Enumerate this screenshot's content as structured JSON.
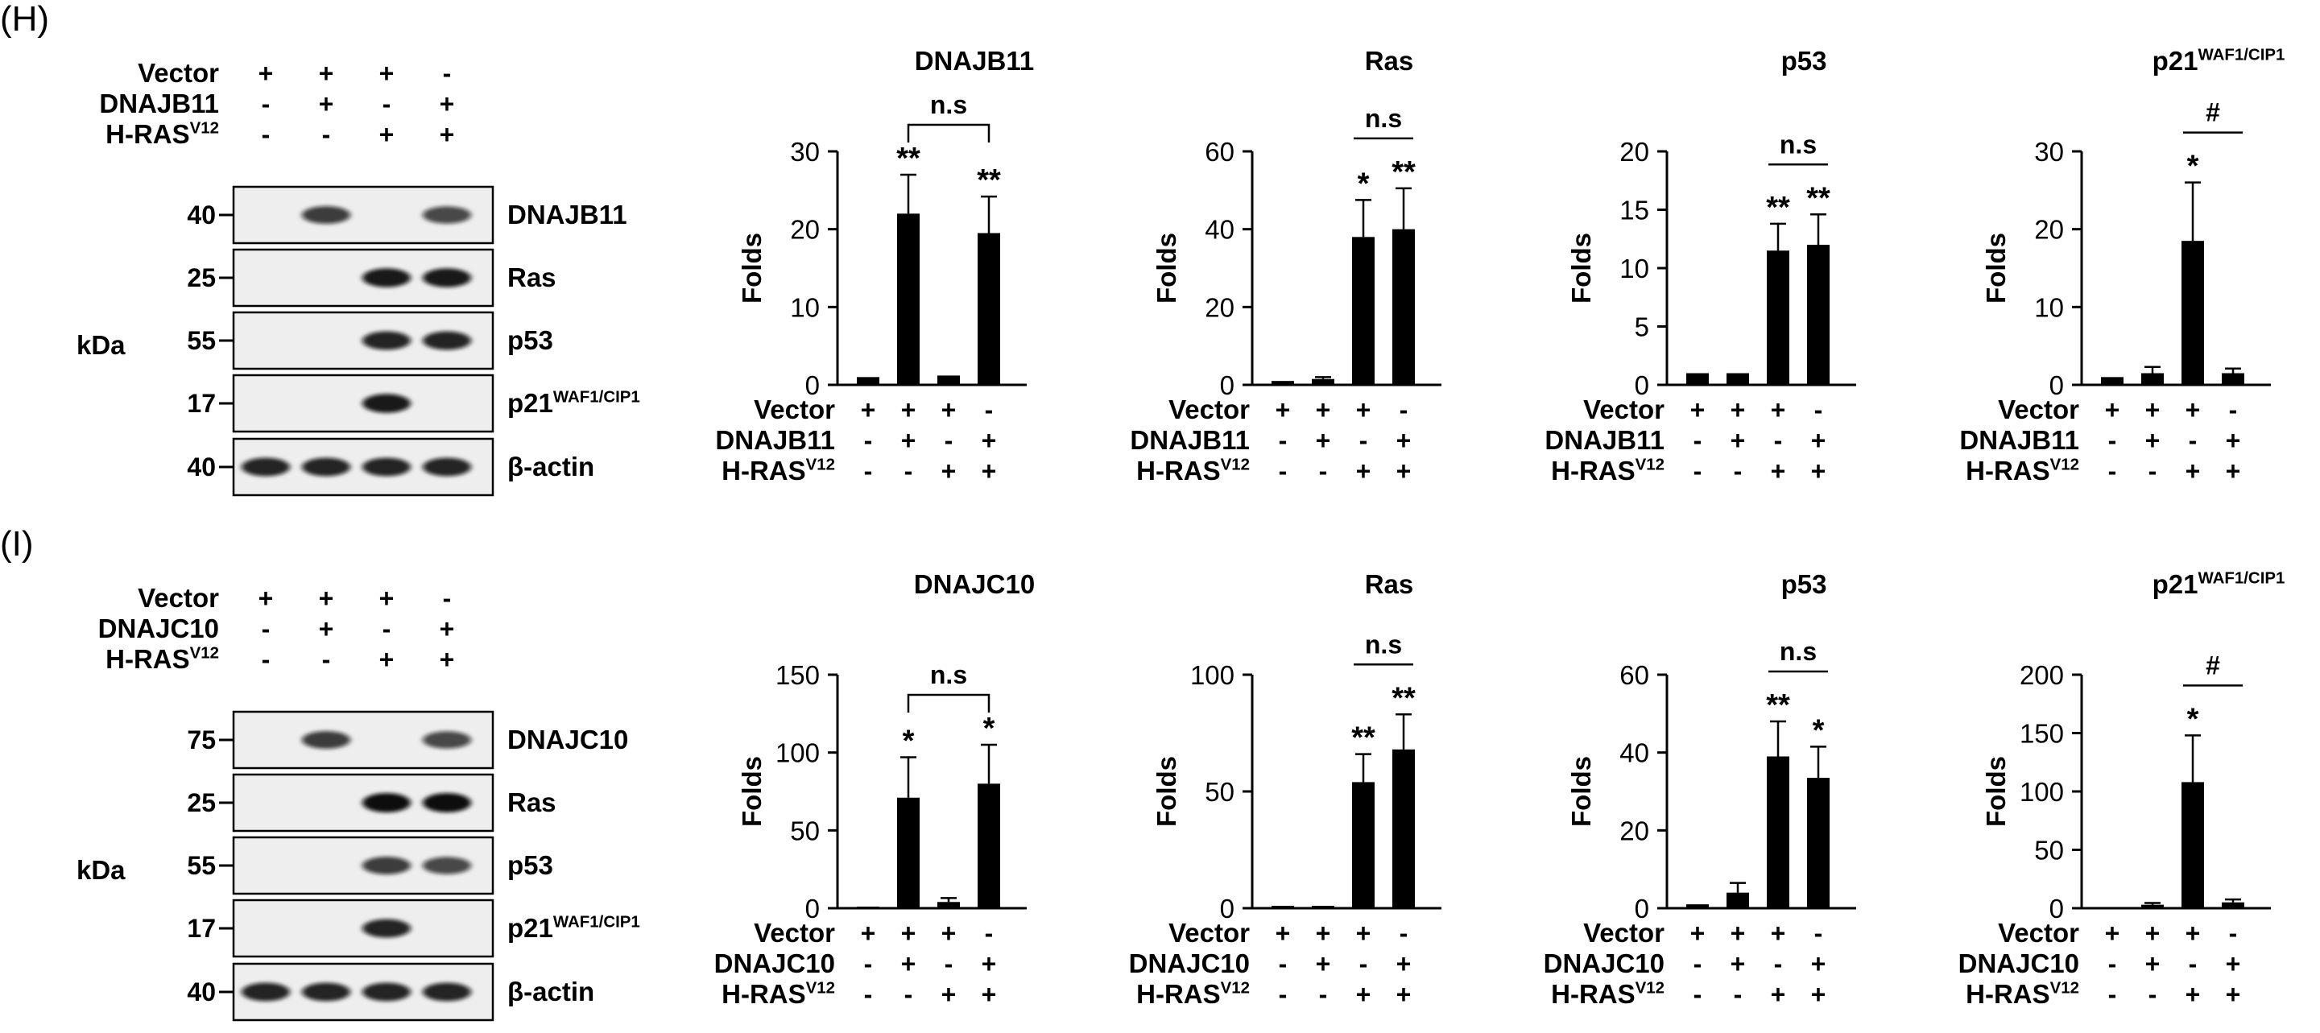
{
  "panels": [
    {
      "letter": "(H)",
      "blot": {
        "conditions": [
          {
            "label": "Vector",
            "signs": [
              "+",
              "+",
              "+",
              "-"
            ]
          },
          {
            "label": "DNAJB11",
            "signs": [
              "-",
              "+",
              "-",
              "+"
            ]
          },
          {
            "label": "H-RAS",
            "sup": "V12",
            "signs": [
              "-",
              "-",
              "+",
              "+"
            ]
          }
        ],
        "unit": "kDa",
        "strips": [
          {
            "name": "DNAJB11",
            "sup": "",
            "marker": "40",
            "bands": [
              0,
              0.8,
              0,
              0.75
            ]
          },
          {
            "name": "Ras",
            "sup": "",
            "marker": "25",
            "bands": [
              0,
              0,
              0.95,
              0.95
            ]
          },
          {
            "name": "p53",
            "sup": "",
            "marker": "55",
            "bands": [
              0,
              0,
              0.9,
              0.9
            ]
          },
          {
            "name": "p21",
            "sup": "WAF1/CIP1",
            "marker": "17",
            "bands": [
              0,
              0,
              0.95,
              0
            ]
          },
          {
            "name": "β-actin",
            "sup": "",
            "marker": "40",
            "bands": [
              0.9,
              0.9,
              0.9,
              0.9
            ]
          }
        ]
      }
    },
    {
      "letter": "(I)",
      "blot": {
        "conditions": [
          {
            "label": "Vector",
            "signs": [
              "+",
              "+",
              "+",
              "-"
            ]
          },
          {
            "label": "DNAJC10",
            "signs": [
              "-",
              "+",
              "-",
              "+"
            ]
          },
          {
            "label": "H-RAS",
            "sup": "V12",
            "signs": [
              "-",
              "-",
              "+",
              "+"
            ]
          }
        ],
        "unit": "kDa",
        "strips": [
          {
            "name": "DNAJC10",
            "sup": "",
            "marker": "75",
            "bands": [
              0,
              0.8,
              0,
              0.75
            ]
          },
          {
            "name": "Ras",
            "sup": "",
            "marker": "25",
            "bands": [
              0,
              0,
              1.0,
              1.0
            ]
          },
          {
            "name": "p53",
            "sup": "",
            "marker": "55",
            "bands": [
              0,
              0,
              0.8,
              0.75
            ]
          },
          {
            "name": "p21",
            "sup": "WAF1/CIP1",
            "marker": "17",
            "bands": [
              0,
              0,
              0.9,
              0
            ]
          },
          {
            "name": "β-actin",
            "sup": "",
            "marker": "40",
            "bands": [
              0.9,
              0.9,
              0.9,
              0.9
            ]
          }
        ]
      }
    }
  ],
  "chart_data": [
    {
      "type": "bar",
      "panel": "H",
      "title": "DNAJB11",
      "title_sup": "",
      "ylabel": "Folds",
      "ylim": [
        0,
        30
      ],
      "yticks": [
        0,
        10,
        20,
        30
      ],
      "values": [
        1,
        22,
        1.2,
        19.5
      ],
      "errors": [
        0,
        5,
        0,
        4.7
      ],
      "stars": [
        "",
        "**",
        "",
        "**"
      ],
      "comparison": {
        "from": 1,
        "to": 3,
        "label": "n.s",
        "style": "bracket"
      },
      "conditions": [
        {
          "label": "Vector",
          "signs": [
            "+",
            "+",
            "+",
            "-"
          ]
        },
        {
          "label": "DNAJB11",
          "signs": [
            "-",
            "+",
            "-",
            "+"
          ]
        },
        {
          "label": "H-RAS",
          "sup": "V12",
          "signs": [
            "-",
            "-",
            "+",
            "+"
          ]
        }
      ]
    },
    {
      "type": "bar",
      "panel": "H",
      "title": "Ras",
      "title_sup": "",
      "ylabel": "Folds",
      "ylim": [
        0,
        60
      ],
      "yticks": [
        0,
        20,
        40,
        60
      ],
      "values": [
        1,
        1.5,
        38,
        40
      ],
      "errors": [
        0,
        0.5,
        9.5,
        10.5
      ],
      "stars": [
        "",
        "",
        "*",
        "**"
      ],
      "comparison": {
        "from": 2,
        "to": 3,
        "label": "n.s",
        "style": "line"
      },
      "conditions": [
        {
          "label": "Vector",
          "signs": [
            "+",
            "+",
            "+",
            "-"
          ]
        },
        {
          "label": "DNAJB11",
          "signs": [
            "-",
            "+",
            "-",
            "+"
          ]
        },
        {
          "label": "H-RAS",
          "sup": "V12",
          "signs": [
            "-",
            "-",
            "+",
            "+"
          ]
        }
      ]
    },
    {
      "type": "bar",
      "panel": "H",
      "title": "p53",
      "title_sup": "",
      "ylabel": "Folds",
      "ylim": [
        0,
        20
      ],
      "yticks": [
        0,
        5,
        10,
        15,
        20
      ],
      "values": [
        1,
        1,
        11.5,
        12
      ],
      "errors": [
        0,
        0,
        2.3,
        2.6
      ],
      "stars": [
        "",
        "",
        "**",
        "**"
      ],
      "comparison": {
        "from": 2,
        "to": 3,
        "label": "n.s",
        "style": "line"
      },
      "conditions": [
        {
          "label": "Vector",
          "signs": [
            "+",
            "+",
            "+",
            "-"
          ]
        },
        {
          "label": "DNAJB11",
          "signs": [
            "-",
            "+",
            "-",
            "+"
          ]
        },
        {
          "label": "H-RAS",
          "sup": "V12",
          "signs": [
            "-",
            "-",
            "+",
            "+"
          ]
        }
      ]
    },
    {
      "type": "bar",
      "panel": "H",
      "title": "p21",
      "title_sup": "WAF1/CIP1",
      "ylabel": "Folds",
      "ylim": [
        0,
        30
      ],
      "yticks": [
        0,
        10,
        20,
        30
      ],
      "values": [
        1,
        1.5,
        18.5,
        1.5
      ],
      "errors": [
        0,
        0.8,
        7.5,
        0.6
      ],
      "stars": [
        "",
        "",
        "*",
        ""
      ],
      "comparison": {
        "from": 2,
        "to": 3,
        "label": "#",
        "style": "line"
      },
      "conditions": [
        {
          "label": "Vector",
          "signs": [
            "+",
            "+",
            "+",
            "-"
          ]
        },
        {
          "label": "DNAJB11",
          "signs": [
            "-",
            "+",
            "-",
            "+"
          ]
        },
        {
          "label": "H-RAS",
          "sup": "V12",
          "signs": [
            "-",
            "-",
            "+",
            "+"
          ]
        }
      ]
    },
    {
      "type": "bar",
      "panel": "I",
      "title": "DNAJC10",
      "title_sup": "",
      "ylabel": "Folds",
      "ylim": [
        0,
        150
      ],
      "yticks": [
        0,
        50,
        100,
        150
      ],
      "values": [
        1,
        71,
        4,
        80
      ],
      "errors": [
        0,
        26,
        2.5,
        25
      ],
      "stars": [
        "",
        "*",
        "",
        "*"
      ],
      "comparison": {
        "from": 1,
        "to": 3,
        "label": "n.s",
        "style": "bracket"
      },
      "conditions": [
        {
          "label": "Vector",
          "signs": [
            "+",
            "+",
            "+",
            "-"
          ]
        },
        {
          "label": "DNAJC10",
          "signs": [
            "-",
            "+",
            "-",
            "+"
          ]
        },
        {
          "label": "H-RAS",
          "sup": "V12",
          "signs": [
            "-",
            "-",
            "+",
            "+"
          ]
        }
      ]
    },
    {
      "type": "bar",
      "panel": "I",
      "title": "Ras",
      "title_sup": "",
      "ylabel": "Folds",
      "ylim": [
        0,
        100
      ],
      "yticks": [
        0,
        50,
        100
      ],
      "values": [
        1,
        1,
        54,
        68
      ],
      "errors": [
        0,
        0,
        12,
        15
      ],
      "stars": [
        "",
        "",
        "**",
        "**"
      ],
      "comparison": {
        "from": 2,
        "to": 3,
        "label": "n.s",
        "style": "line"
      },
      "conditions": [
        {
          "label": "Vector",
          "signs": [
            "+",
            "+",
            "+",
            "-"
          ]
        },
        {
          "label": "DNAJC10",
          "signs": [
            "-",
            "+",
            "-",
            "+"
          ]
        },
        {
          "label": "H-RAS",
          "sup": "V12",
          "signs": [
            "-",
            "-",
            "+",
            "+"
          ]
        }
      ]
    },
    {
      "type": "bar",
      "panel": "I",
      "title": "p53",
      "title_sup": "",
      "ylabel": "Folds",
      "ylim": [
        0,
        60
      ],
      "yticks": [
        0,
        20,
        40,
        60
      ],
      "values": [
        1,
        4,
        39,
        33.5
      ],
      "errors": [
        0,
        2.5,
        9,
        8
      ],
      "stars": [
        "",
        "",
        "**",
        "*"
      ],
      "comparison": {
        "from": 2,
        "to": 3,
        "label": "n.s",
        "style": "line"
      },
      "conditions": [
        {
          "label": "Vector",
          "signs": [
            "+",
            "+",
            "+",
            "-"
          ]
        },
        {
          "label": "DNAJC10",
          "signs": [
            "-",
            "+",
            "-",
            "+"
          ]
        },
        {
          "label": "H-RAS",
          "sup": "V12",
          "signs": [
            "-",
            "-",
            "+",
            "+"
          ]
        }
      ]
    },
    {
      "type": "bar",
      "panel": "I",
      "title": "p21",
      "title_sup": "WAF1/CIP1",
      "ylabel": "Folds",
      "ylim": [
        0,
        200
      ],
      "yticks": [
        0,
        50,
        100,
        150,
        200
      ],
      "values": [
        1,
        3,
        108,
        5
      ],
      "errors": [
        0,
        1.5,
        40,
        2.5
      ],
      "stars": [
        "",
        "",
        "*",
        ""
      ],
      "comparison": {
        "from": 2,
        "to": 3,
        "label": "#",
        "style": "line"
      },
      "conditions": [
        {
          "label": "Vector",
          "signs": [
            "+",
            "+",
            "+",
            "-"
          ]
        },
        {
          "label": "DNAJC10",
          "signs": [
            "-",
            "+",
            "-",
            "+"
          ]
        },
        {
          "label": "H-RAS",
          "sup": "V12",
          "signs": [
            "-",
            "-",
            "+",
            "+"
          ]
        }
      ]
    }
  ]
}
